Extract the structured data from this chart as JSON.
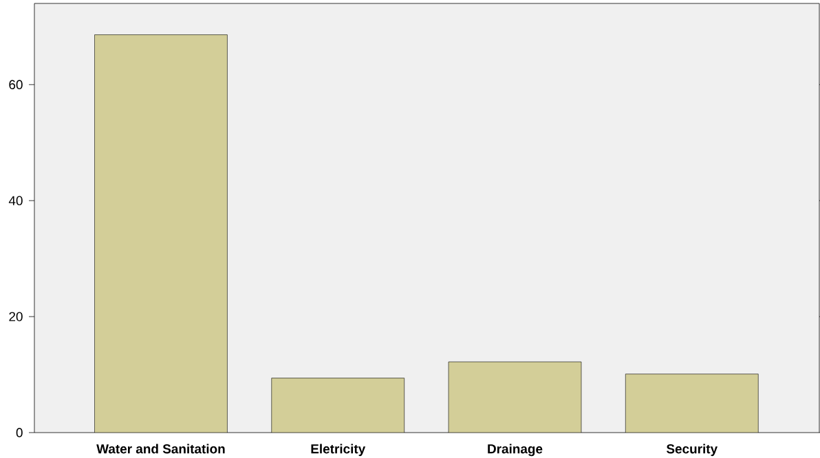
{
  "chart_data": {
    "type": "bar",
    "categories": [
      "Water and Sanitation",
      "Eletricity",
      "Drainage",
      "Security"
    ],
    "values": [
      68.6,
      9.4,
      12.2,
      10.1
    ],
    "color": "#d3ce98",
    "ylim": [
      0,
      74
    ],
    "yticks": [
      0,
      20,
      40,
      60
    ],
    "grid": false
  }
}
